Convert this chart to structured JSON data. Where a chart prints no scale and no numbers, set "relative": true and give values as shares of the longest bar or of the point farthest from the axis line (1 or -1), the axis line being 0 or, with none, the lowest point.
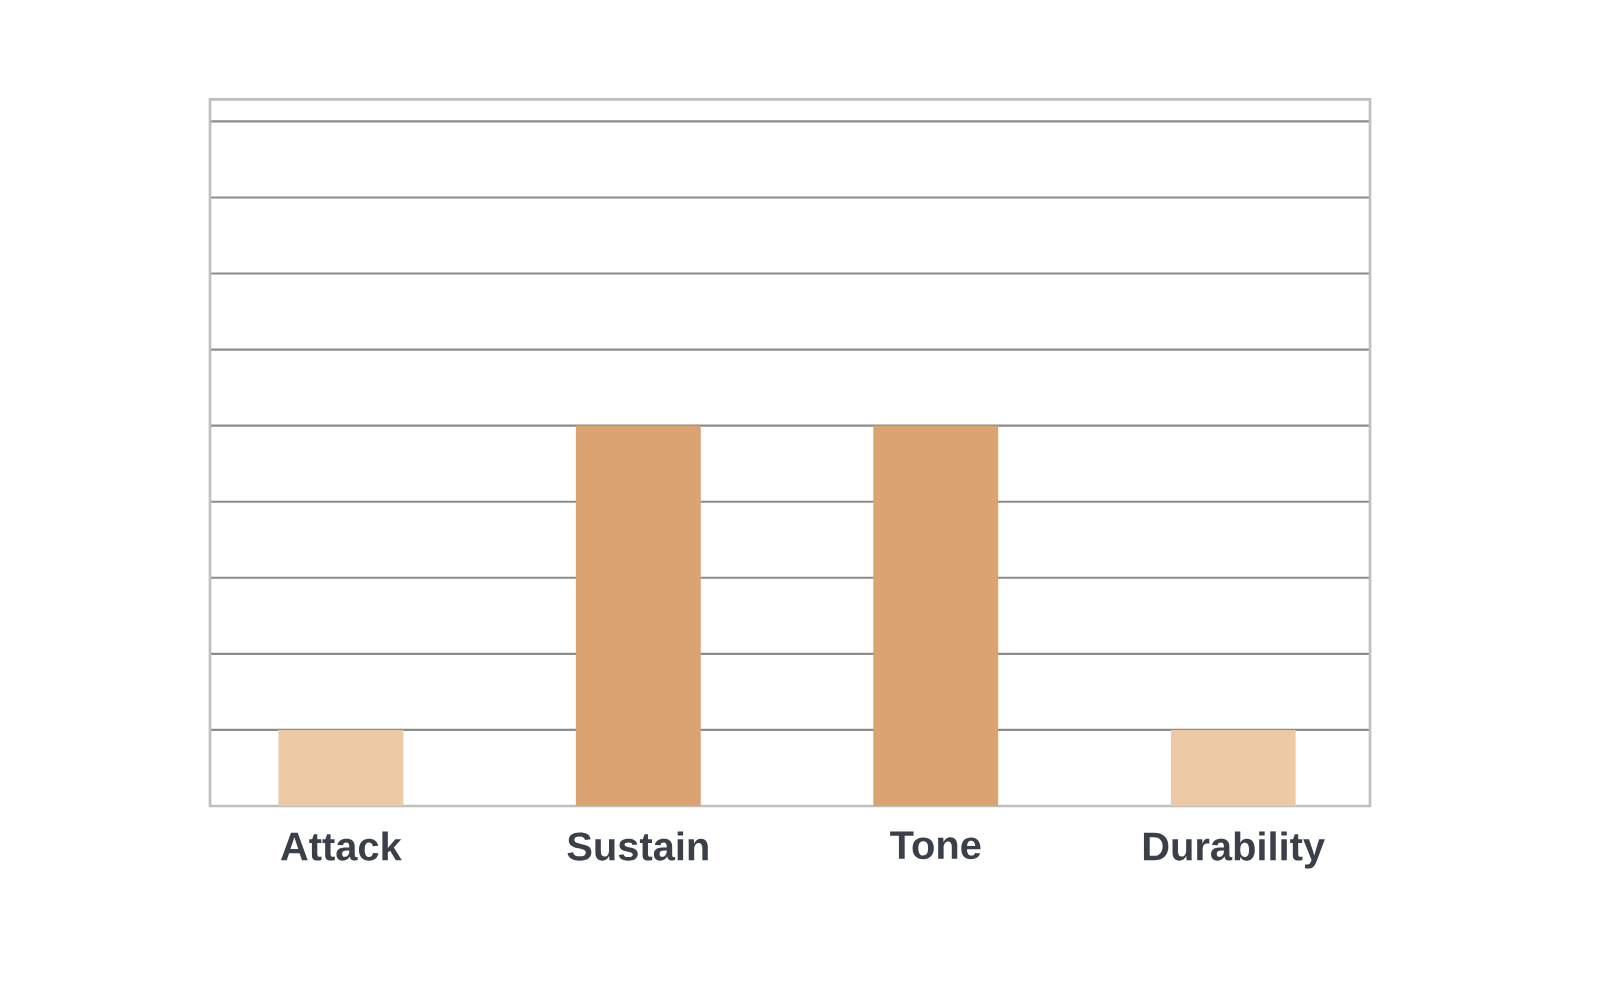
{
  "chart_data": {
    "type": "bar",
    "relative": true,
    "categories": [
      "Attack",
      "Sustain",
      "Tone",
      "Durability"
    ],
    "values": [
      0.2,
      1,
      1,
      0.2
    ],
    "colors": [
      "#edcaa5",
      "#dba371",
      "#dba371",
      "#edcaa5"
    ],
    "grid": "y"
  }
}
